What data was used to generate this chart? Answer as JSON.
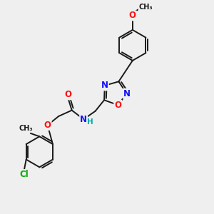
{
  "bg_color": "#efefef",
  "bond_color": "#1a1a1a",
  "bond_width": 1.4,
  "atom_colors": {
    "N": "#1010ff",
    "O": "#ff1010",
    "Cl": "#00aa00",
    "C": "#1a1a1a",
    "H": "#00aaaa"
  },
  "font_size": 8.5
}
